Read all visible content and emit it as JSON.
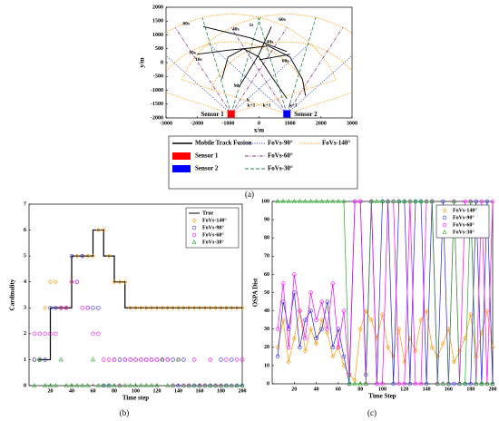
{
  "chart_data": [
    {
      "type": "tracks",
      "xlabel": "x/m",
      "ylabel": "y/m",
      "panel_label": "(a)",
      "xlim": [
        -3000,
        3000
      ],
      "xticks": [
        -3000,
        -2000,
        -1000,
        0,
        1000,
        2000,
        3000
      ],
      "ylim": [
        -2000,
        2000
      ],
      "yticks": [
        -2000,
        -1500,
        -1000,
        -500,
        0,
        500,
        1000,
        1500,
        2000
      ],
      "series": [
        {
          "name": "Mobile Track Fusion",
          "color": "#000000",
          "tracks": [
            {
              "x": [
                -1800,
                -300,
                900
              ],
              "y": [
                1300,
                900,
                400
              ]
            },
            {
              "x": [
                -2000,
                -1000,
                -500,
                0,
                400,
                900
              ],
              "y": [
                300,
                450,
                500,
                200,
                -500,
                -1300
              ]
            },
            {
              "x": [
                400,
                0,
                -600
              ],
              "y": [
                1300,
                300,
                -800
              ]
            },
            {
              "x": [
                0,
                1000
              ],
              "y": [
                100,
                300
              ]
            },
            {
              "x": [
                -1200,
                -1000,
                -500,
                300,
                1000,
                1400,
                1500
              ],
              "y": [
                -600,
                200,
                500,
                600,
                200,
                -600,
                -1200
              ]
            }
          ]
        }
      ],
      "fovs": [
        {
          "name": "FoVs-90°",
          "color": "#3355cc",
          "dash": "dotted"
        },
        {
          "name": "FoVs-140°",
          "color": "#ff9900",
          "dash": "dotted"
        },
        {
          "name": "FoVs-60°",
          "color": "#8a3a8a",
          "dash": "dash-dot"
        },
        {
          "name": "FoVs-30°",
          "color": "#228844",
          "dash": "dashed"
        }
      ],
      "sensors": [
        {
          "name": "Sensor 1",
          "color": "#ff0000",
          "x": -900,
          "y": -1850
        },
        {
          "name": "Sensor 2",
          "color": "#0000ff",
          "x": 900,
          "y": -1850
        }
      ],
      "annotations": [
        "80s",
        "40s",
        "1s",
        "60s",
        "40s",
        "10s",
        "10s",
        "60s",
        "90s",
        "k",
        "k+1",
        "k+1",
        "k+1"
      ]
    },
    {
      "type": "scatter",
      "xlabel": "Time step",
      "ylabel": "Cardinality",
      "panel_label": "(b)",
      "xlim": [
        0,
        200
      ],
      "xticks": [
        20,
        40,
        60,
        80,
        100,
        120,
        140,
        160,
        180,
        200
      ],
      "ylim": [
        0,
        7
      ],
      "yticks": [
        0,
        1,
        2,
        3,
        4,
        5,
        6,
        7
      ],
      "series": [
        {
          "name": "True",
          "color": "#000000",
          "style": "step",
          "x": [
            8,
            20,
            40,
            60,
            70,
            80,
            90,
            200
          ],
          "values": [
            1,
            3,
            5,
            6,
            5,
            4,
            3,
            3
          ]
        },
        {
          "name": "FoVs-140°",
          "color": "#ff9900",
          "marker": "diamond",
          "x": [
            5,
            10,
            15,
            20,
            25,
            30,
            35,
            40,
            45,
            50,
            55,
            60,
            65,
            70,
            75,
            80,
            85,
            90,
            95,
            100,
            105,
            110,
            115,
            120,
            125,
            130,
            135,
            140,
            145,
            150,
            155,
            160,
            165,
            170,
            175,
            180,
            185,
            190,
            195,
            200
          ],
          "values": [
            1,
            1,
            3,
            4,
            4,
            3,
            3,
            4,
            5,
            5,
            5,
            5,
            6,
            6,
            5,
            4,
            4,
            4,
            3,
            3,
            3,
            3,
            3,
            3,
            3,
            3,
            3,
            3,
            3,
            3,
            3,
            3,
            3,
            3,
            3,
            3,
            3,
            3,
            3,
            3
          ]
        },
        {
          "name": "FoVs-90°",
          "color": "#2222dd",
          "marker": "circle",
          "x": [
            5,
            10,
            15,
            20,
            25,
            30,
            35,
            40,
            45,
            50,
            55,
            60,
            65,
            70,
            75,
            80,
            85,
            90,
            95,
            100,
            105,
            110,
            115,
            120,
            125,
            130,
            135,
            140,
            145,
            150,
            155,
            160,
            165,
            170,
            175,
            180,
            185,
            190,
            195,
            200
          ],
          "values": [
            1,
            1,
            1,
            3,
            3,
            3,
            3,
            5,
            4,
            5,
            3,
            3,
            3,
            0,
            0,
            1,
            1,
            1,
            1,
            1,
            1,
            1,
            1,
            1,
            1,
            1,
            1,
            0,
            1,
            0,
            0,
            0,
            0,
            0,
            0,
            1,
            0,
            1,
            0,
            0
          ]
        },
        {
          "name": "FoVs-60°",
          "color": "#ff00ff",
          "marker": "circle",
          "x": [
            5,
            10,
            15,
            20,
            25,
            30,
            35,
            40,
            45,
            50,
            55,
            60,
            65,
            70,
            75,
            80,
            85,
            90,
            95,
            100,
            105,
            110,
            115,
            120,
            125,
            130,
            135,
            140,
            145,
            150,
            155,
            160,
            165,
            170,
            175,
            180,
            185,
            190,
            195,
            200
          ],
          "values": [
            2,
            2,
            2,
            2,
            2,
            3,
            3,
            4,
            4,
            3,
            3,
            2,
            2,
            1,
            1,
            1,
            0,
            1,
            1,
            1,
            1,
            1,
            1,
            1,
            1,
            1,
            0,
            1,
            0,
            0,
            1,
            0,
            0,
            1,
            0,
            0,
            1,
            0,
            1,
            1
          ]
        },
        {
          "name": "FoVs-30°",
          "color": "#22aa22",
          "marker": "triangle",
          "x": [
            5,
            10,
            15,
            20,
            25,
            30,
            35,
            40,
            45,
            50,
            55,
            60,
            65,
            70,
            75,
            80,
            85,
            90,
            95,
            100,
            105,
            110,
            115,
            120,
            125,
            130,
            135,
            140,
            145,
            150,
            155,
            160,
            165,
            170,
            175,
            180,
            185,
            190,
            195,
            200
          ],
          "values": [
            0,
            1,
            0,
            0,
            0,
            1,
            0,
            0,
            0,
            0,
            0,
            1,
            0,
            0,
            0,
            0,
            0,
            0,
            0,
            0,
            0,
            0,
            0,
            0,
            1,
            0,
            0,
            1,
            0,
            0,
            0,
            0,
            0,
            0,
            0,
            0,
            0,
            0,
            0,
            0
          ]
        }
      ]
    },
    {
      "type": "line",
      "xlabel": "Time Step",
      "ylabel": "OSPA Dist",
      "panel_label": "(c)",
      "xlim": [
        0,
        200
      ],
      "xticks": [
        20,
        40,
        60,
        80,
        100,
        120,
        140,
        160,
        180,
        200
      ],
      "ylim": [
        0,
        100
      ],
      "yticks": [
        0,
        10,
        20,
        30,
        40,
        50,
        60,
        70,
        80,
        90,
        100
      ],
      "series": [
        {
          "name": "FoVs-140°",
          "color": "#ff9900",
          "marker": "diamond",
          "x": [
            5,
            10,
            15,
            20,
            25,
            30,
            35,
            40,
            45,
            50,
            55,
            60,
            65,
            70,
            75,
            80,
            85,
            90,
            95,
            100,
            105,
            110,
            115,
            120,
            125,
            130,
            135,
            140,
            145,
            150,
            155,
            160,
            165,
            170,
            175,
            180,
            185,
            190,
            195,
            200
          ],
          "values": [
            20,
            35,
            12,
            25,
            40,
            18,
            30,
            22,
            35,
            28,
            15,
            20,
            10,
            5,
            2,
            30,
            40,
            35,
            25,
            38,
            20,
            15,
            30,
            12,
            25,
            18,
            35,
            40,
            20,
            15,
            22,
            30,
            12,
            18,
            25,
            38,
            15,
            28,
            40,
            20
          ]
        },
        {
          "name": "FoVs-90°",
          "color": "#2222dd",
          "marker": "circle",
          "x": [
            5,
            10,
            15,
            20,
            25,
            30,
            35,
            40,
            45,
            50,
            55,
            60,
            65,
            70,
            75,
            80,
            85,
            90,
            95,
            100,
            105,
            110,
            115,
            120,
            125,
            130,
            135,
            140,
            145,
            150,
            155,
            160,
            165,
            170,
            175,
            180,
            185,
            190,
            195,
            200
          ],
          "values": [
            15,
            45,
            30,
            50,
            20,
            35,
            40,
            25,
            30,
            45,
            20,
            30,
            15,
            0,
            100,
            100,
            5,
            100,
            0,
            100,
            100,
            0,
            100,
            100,
            0,
            100,
            100,
            0,
            100,
            0,
            100,
            0,
            0,
            0,
            0,
            0,
            100,
            0,
            100,
            0
          ]
        },
        {
          "name": "FoVs-60°",
          "color": "#ff00ff",
          "marker": "circle",
          "x": [
            5,
            10,
            15,
            20,
            25,
            30,
            35,
            40,
            45,
            50,
            55,
            60,
            65,
            70,
            75,
            80,
            85,
            90,
            95,
            100,
            105,
            110,
            115,
            120,
            125,
            130,
            135,
            140,
            145,
            150,
            155,
            160,
            165,
            170,
            175,
            180,
            185,
            190,
            195,
            200
          ],
          "values": [
            30,
            55,
            20,
            60,
            40,
            25,
            50,
            35,
            45,
            30,
            55,
            20,
            40,
            5,
            100,
            100,
            0,
            100,
            0,
            0,
            100,
            100,
            0,
            0,
            100,
            0,
            0,
            100,
            100,
            0,
            0,
            0,
            100,
            0,
            100,
            100,
            0,
            100,
            0,
            100
          ]
        },
        {
          "name": "FoVs-30°",
          "color": "#22aa22",
          "marker": "triangle",
          "x": [
            5,
            10,
            15,
            20,
            25,
            30,
            35,
            40,
            45,
            50,
            55,
            60,
            65,
            70,
            75,
            80,
            85,
            90,
            95,
            100,
            105,
            110,
            115,
            120,
            125,
            130,
            135,
            140,
            145,
            150,
            155,
            160,
            165,
            170,
            175,
            180,
            185,
            190,
            195,
            200
          ],
          "values": [
            100,
            100,
            100,
            100,
            100,
            100,
            100,
            100,
            100,
            100,
            100,
            100,
            100,
            0,
            0,
            0,
            0,
            100,
            100,
            100,
            100,
            100,
            100,
            100,
            100,
            100,
            100,
            100,
            100,
            0,
            0,
            0,
            100,
            0,
            0,
            100,
            0,
            0,
            0,
            0
          ]
        }
      ]
    }
  ]
}
